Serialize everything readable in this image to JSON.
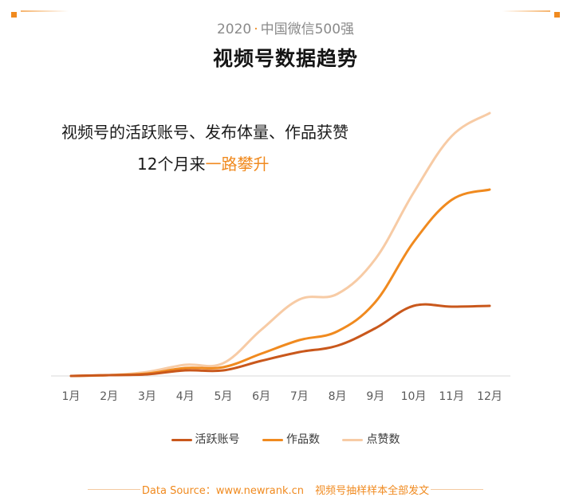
{
  "header": {
    "year": "2020",
    "sep": "·",
    "subtitle": "中国微信500强",
    "title": "视频号数据趋势"
  },
  "annotation": {
    "line1": "视频号的活跃账号、发布体量、作品获赞",
    "line2_prefix": "12个月来",
    "line2_highlight": "一路攀升"
  },
  "footer": {
    "source": "Data Source：www.newrank.cn",
    "note": "视频号抽样样本全部发文"
  },
  "colors": {
    "accent": "#f08a1f",
    "active": "#c9581c",
    "works": "#f08a1f",
    "likes": "#f7cba5"
  },
  "chart_data": {
    "type": "line",
    "title": "视频号数据趋势",
    "categories": [
      "1月",
      "2月",
      "3月",
      "4月",
      "5月",
      "6月",
      "7月",
      "8月",
      "9月",
      "10月",
      "11月",
      "12月"
    ],
    "ylim": [
      0,
      330
    ],
    "y_axis_visible": false,
    "grid": false,
    "legend_position": "bottom",
    "series": [
      {
        "name": "活跃账号",
        "color": "#c9581c",
        "values": [
          0,
          1,
          2,
          7,
          7,
          19,
          30,
          38,
          60,
          88,
          87,
          88
        ]
      },
      {
        "name": "作品数",
        "color": "#f08a1f",
        "values": [
          0,
          1,
          3,
          10,
          11,
          28,
          45,
          56,
          93,
          168,
          221,
          234
        ]
      },
      {
        "name": "点赞数",
        "color": "#f7cba5",
        "values": [
          0,
          1,
          5,
          14,
          16,
          58,
          96,
          103,
          147,
          230,
          301,
          330
        ]
      }
    ]
  }
}
